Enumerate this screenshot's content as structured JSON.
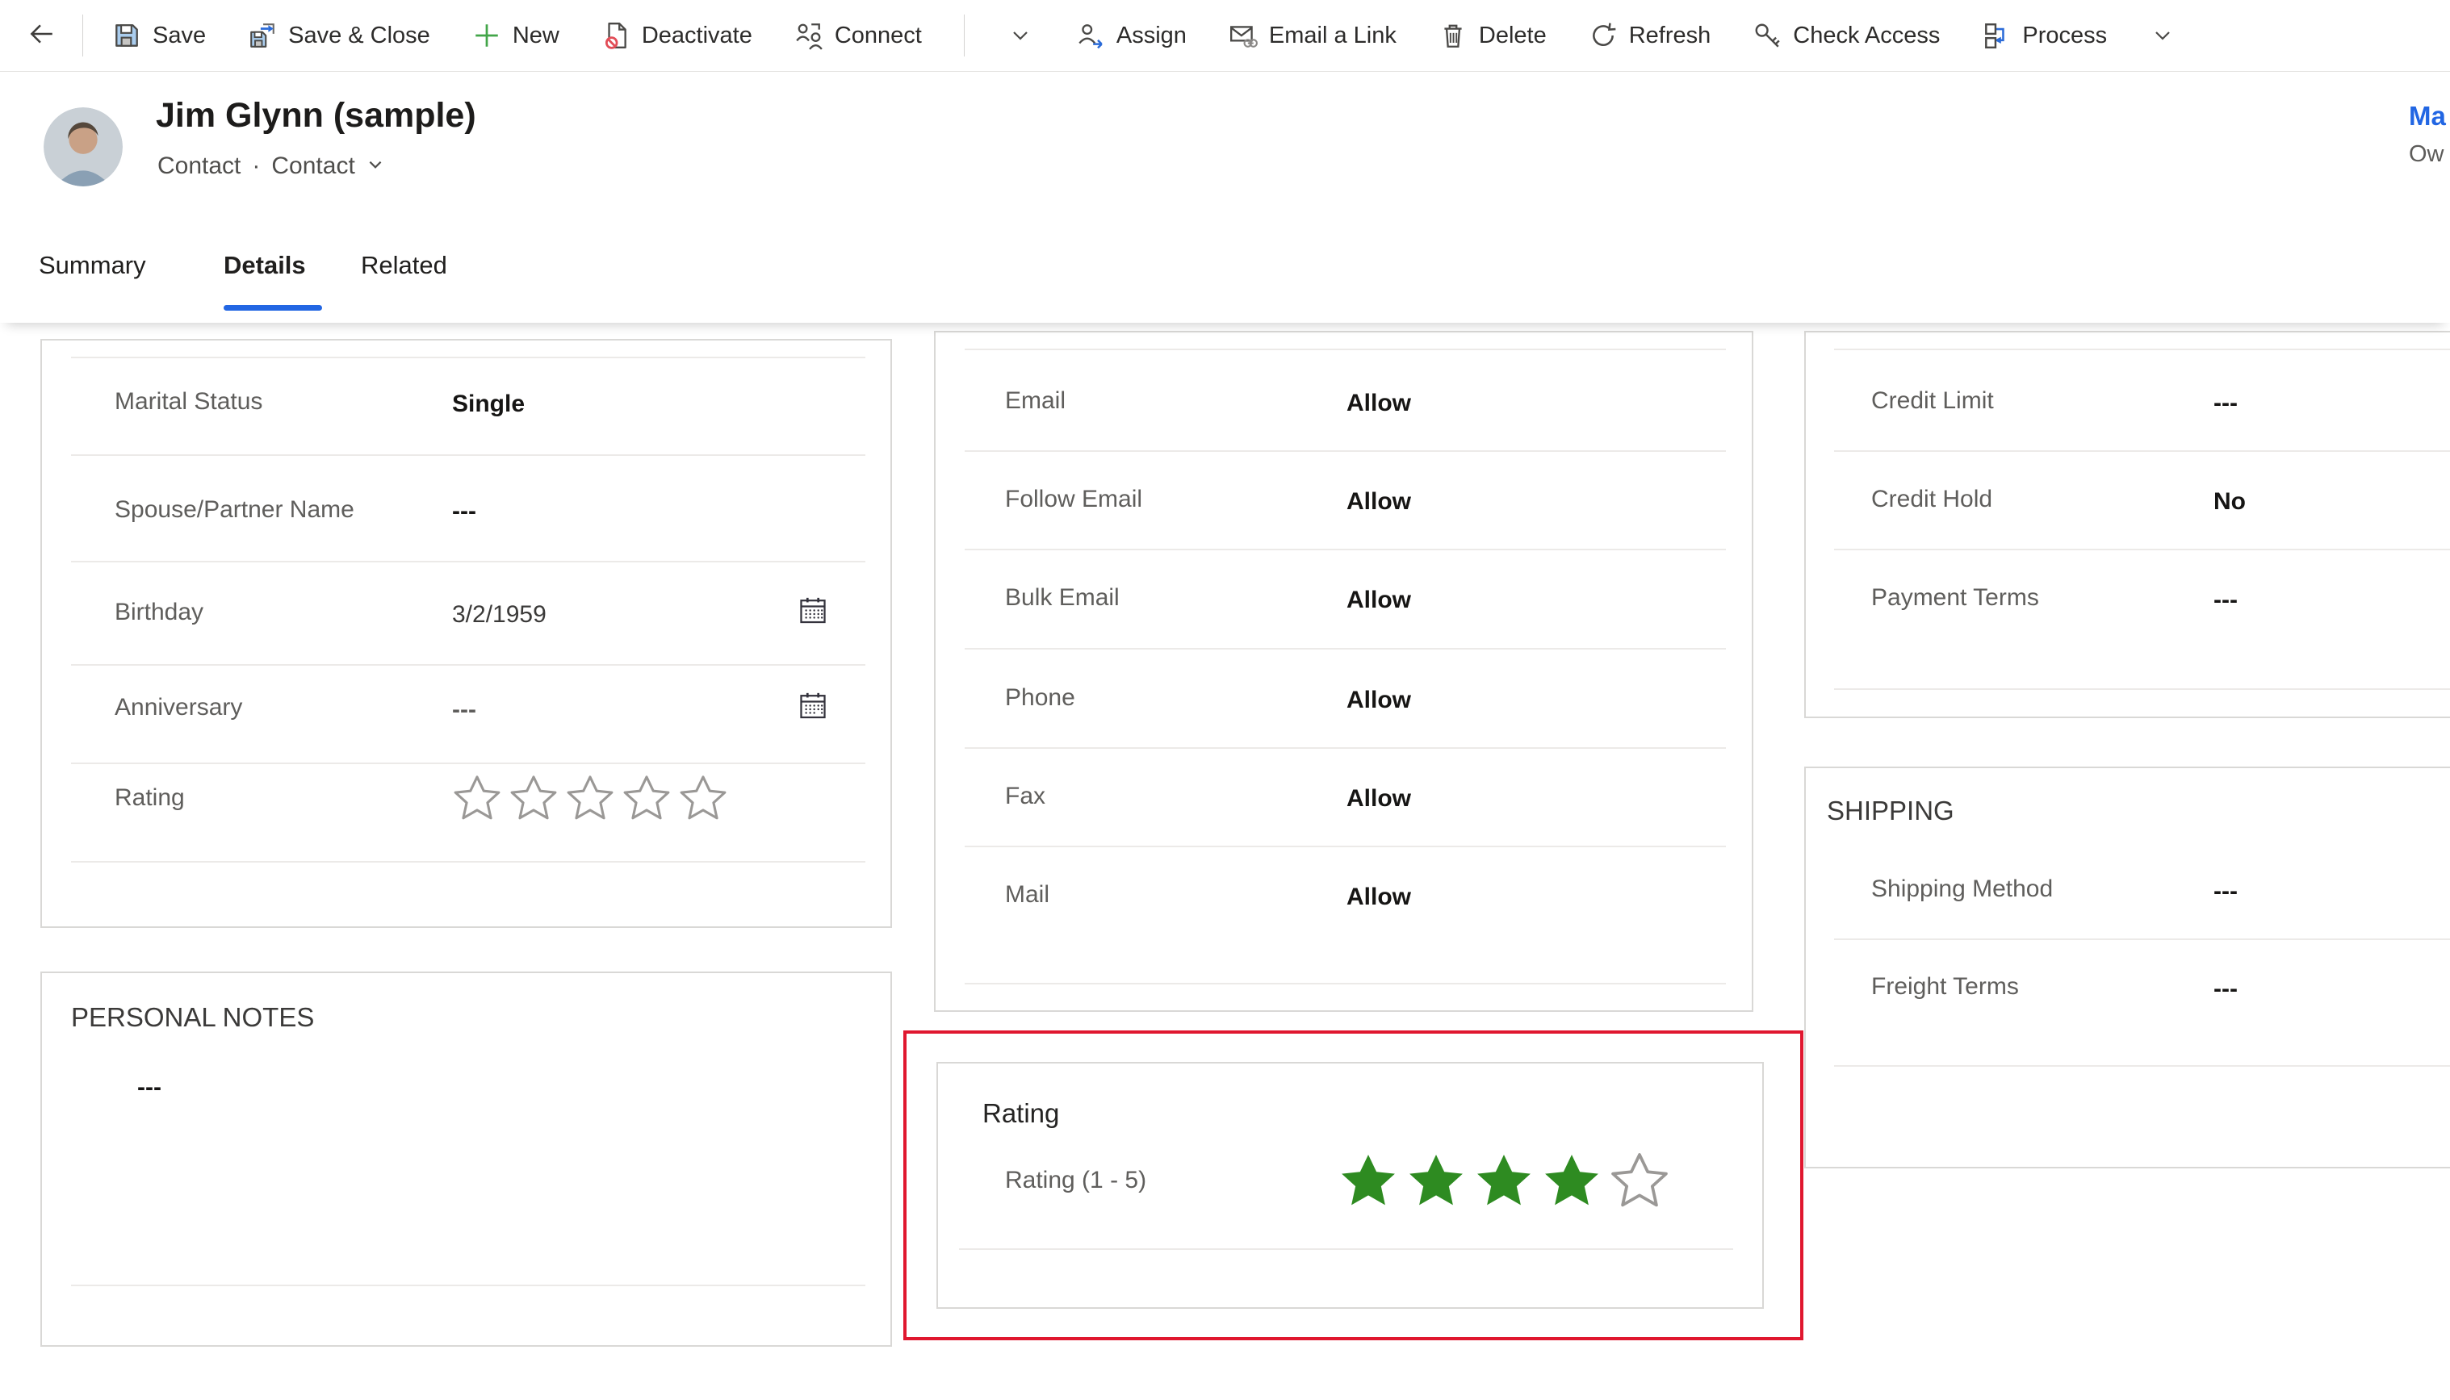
{
  "toolbar": {
    "items": [
      {
        "label": "Save"
      },
      {
        "label": "Save & Close"
      },
      {
        "label": "New"
      },
      {
        "label": "Deactivate"
      },
      {
        "label": "Connect"
      },
      {
        "label": "Assign"
      },
      {
        "label": "Email a Link"
      },
      {
        "label": "Delete"
      },
      {
        "label": "Refresh"
      },
      {
        "label": "Check Access"
      },
      {
        "label": "Process"
      }
    ]
  },
  "header": {
    "title": "Jim Glynn (sample)",
    "entity": "Contact",
    "separator": "·",
    "form": "Contact",
    "owner_value": "Ma",
    "owner_label": "Ow"
  },
  "tabs": {
    "items": [
      "Summary",
      "Details",
      "Related"
    ],
    "active": "Details"
  },
  "cards": {
    "personal": {
      "rows": [
        {
          "label": "Marital Status",
          "value": "Single"
        },
        {
          "label": "Spouse/Partner Name",
          "value": "---"
        },
        {
          "label": "Birthday",
          "value": "3/2/1959"
        },
        {
          "label": "Anniversary",
          "value": "---"
        },
        {
          "label": "Rating",
          "stars": {
            "filled": 0,
            "total": 5
          }
        }
      ]
    },
    "notes": {
      "title": "PERSONAL NOTES",
      "value": "---"
    },
    "prefs": {
      "rows": [
        {
          "label": "Email",
          "value": "Allow"
        },
        {
          "label": "Follow Email",
          "value": "Allow"
        },
        {
          "label": "Bulk Email",
          "value": "Allow"
        },
        {
          "label": "Phone",
          "value": "Allow"
        },
        {
          "label": "Fax",
          "value": "Allow"
        },
        {
          "label": "Mail",
          "value": "Allow"
        }
      ]
    },
    "rating": {
      "title": "Rating",
      "row": {
        "label": "Rating (1 - 5)",
        "stars": {
          "filled": 4,
          "total": 5
        }
      }
    },
    "billing": {
      "rows": [
        {
          "label": "Credit Limit",
          "value": "---"
        },
        {
          "label": "Credit Hold",
          "value": "No"
        },
        {
          "label": "Payment Terms",
          "value": "---"
        }
      ]
    },
    "shipping": {
      "title": "SHIPPING",
      "rows": [
        {
          "label": "Shipping Method",
          "value": "---"
        },
        {
          "label": "Freight Terms",
          "value": "---"
        }
      ]
    }
  },
  "colors": {
    "accent": "#2266E3",
    "link": "#2266E3",
    "star_filled": "#2e8b21",
    "star_empty_stroke": "#9a9896",
    "highlight": "#e0172f"
  }
}
